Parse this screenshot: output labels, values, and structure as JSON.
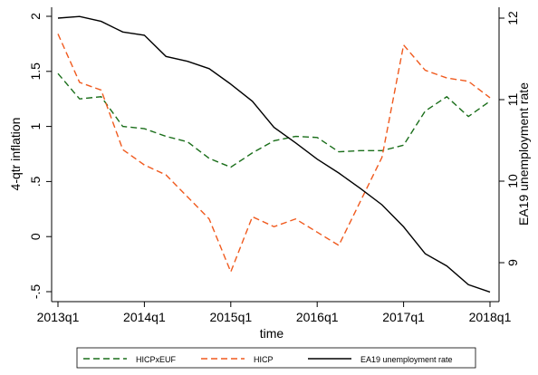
{
  "chart_data": {
    "type": "line",
    "x_label": "time",
    "y_label": "4-qtr inflation",
    "y2_label": "EA19 unemployment rate",
    "categories": [
      "2013q1",
      null,
      null,
      null,
      "2014q1",
      null,
      null,
      null,
      "2015q1",
      null,
      null,
      null,
      "2016q1",
      null,
      null,
      null,
      "2017q1",
      null,
      null,
      null,
      "2018q1"
    ],
    "ylim": [
      -0.5,
      2
    ],
    "yticks": [
      {
        "value": -0.5,
        "label": "-.5"
      },
      0,
      {
        "value": 0.5,
        "label": ".5"
      },
      1,
      1.5,
      2
    ],
    "y2lim": [
      9,
      12
    ],
    "y2ticks": [
      9,
      10,
      11,
      12
    ],
    "series": [
      {
        "name": "HICPxEUF",
        "color": "#1a6e1a",
        "linestyle": "dashed",
        "values": [
          1.48,
          1.25,
          1.27,
          1.0,
          0.98,
          0.91,
          0.86,
          0.71,
          0.63,
          0.76,
          0.87,
          0.91,
          0.9,
          0.77,
          0.78,
          0.78,
          0.83,
          1.14,
          1.27,
          1.09,
          1.23
        ]
      },
      {
        "name": "HICP",
        "color": "#f05a1e",
        "linestyle": "dashed",
        "values": [
          1.84,
          1.4,
          1.33,
          0.79,
          0.65,
          0.56,
          0.36,
          0.16,
          -0.32,
          0.18,
          0.09,
          0.16,
          0.04,
          -0.08,
          0.32,
          0.72,
          1.74,
          1.51,
          1.44,
          1.41,
          1.26
        ]
      },
      {
        "name": "EA19 unemployment rate",
        "color": "#000000",
        "linestyle": "solid",
        "axis": "y2",
        "values": [
          12.0,
          12.02,
          11.96,
          11.83,
          11.79,
          11.53,
          11.47,
          11.38,
          11.19,
          10.98,
          10.66,
          10.47,
          10.27,
          10.1,
          9.91,
          9.71,
          9.44,
          9.11,
          8.96,
          8.73,
          8.64
        ]
      }
    ]
  }
}
